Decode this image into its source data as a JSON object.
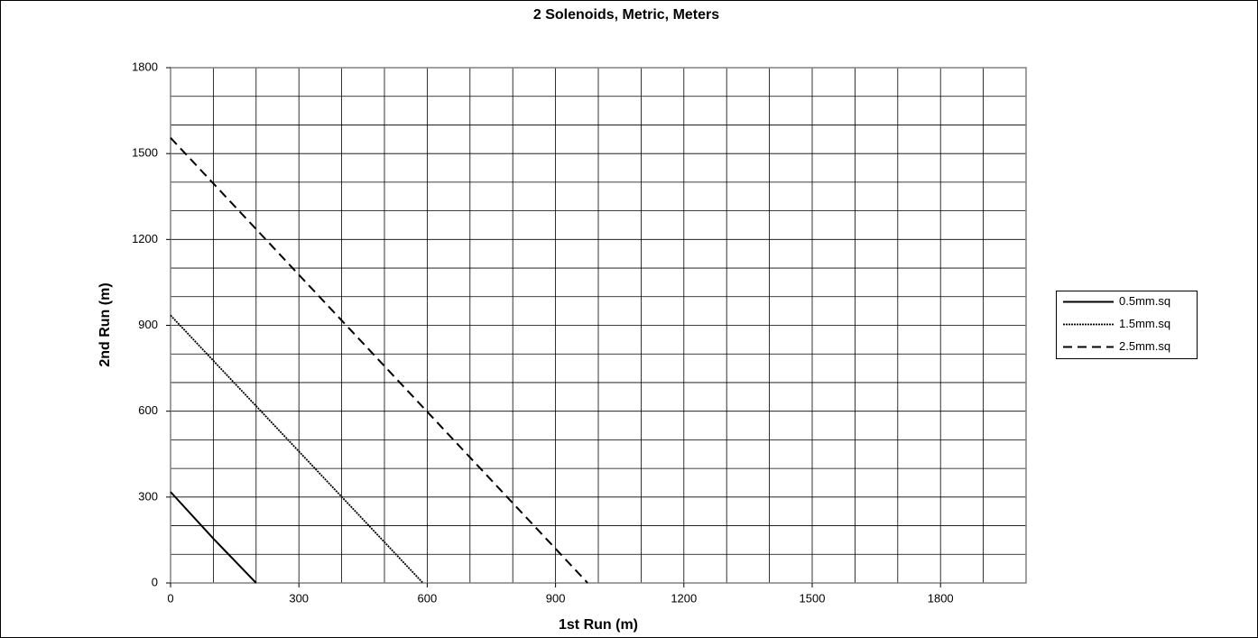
{
  "chart_data": {
    "type": "line",
    "title": "2 Solenoids, Metric, Meters",
    "xlabel": "1st Run (m)",
    "ylabel": "2nd Run (m)",
    "xlim": [
      0,
      2000
    ],
    "ylim": [
      0,
      1800
    ],
    "xticks": [
      0,
      300,
      600,
      900,
      1200,
      1500,
      1800
    ],
    "yticks": [
      0,
      300,
      600,
      900,
      1200,
      1500,
      1800
    ],
    "xgrid": [
      0,
      100,
      200,
      300,
      400,
      500,
      600,
      700,
      800,
      900,
      1000,
      1100,
      1200,
      1300,
      1400,
      1500,
      1600,
      1700,
      1800,
      1900,
      2000
    ],
    "ygrid": [
      0,
      100,
      200,
      300,
      400,
      500,
      600,
      700,
      800,
      900,
      1000,
      1100,
      1200,
      1300,
      1400,
      1500,
      1600,
      1700,
      1800
    ],
    "grid": true,
    "legend": "right",
    "series": [
      {
        "name": "0.5mm.sq",
        "color": "#000000",
        "style": "solid",
        "x": [
          0,
          100,
          200
        ],
        "values": [
          318,
          155,
          0
        ]
      },
      {
        "name": "1.5mm.sq",
        "color": "#000000",
        "style": "dotted",
        "x": [
          0,
          590
        ],
        "values": [
          935,
          0
        ]
      },
      {
        "name": "2.5mm.sq",
        "color": "#000000",
        "style": "dashed",
        "x": [
          0,
          975
        ],
        "values": [
          1555,
          0
        ]
      }
    ]
  }
}
